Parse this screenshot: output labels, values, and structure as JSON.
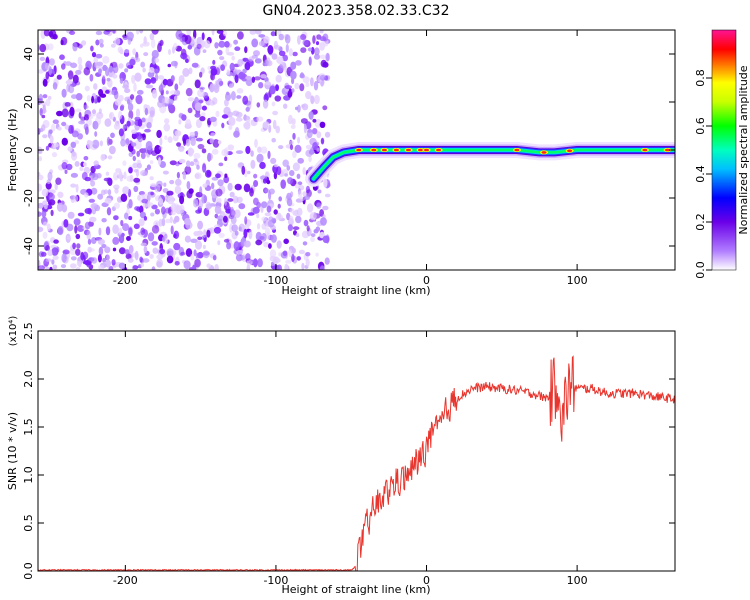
{
  "title": "GN04.2023.358.02.33.C32",
  "chart_data": [
    {
      "type": "heatmap",
      "xlabel": "Height of straight line (km)",
      "ylabel": "Frequency (Hz)",
      "xlim": [
        -258,
        165
      ],
      "ylim": [
        -50,
        50
      ],
      "xticks": [
        -200,
        -100,
        0,
        100
      ],
      "xtick_labels": [
        "-200",
        "-100",
        "0",
        "100"
      ],
      "yticks": [
        -40,
        -20,
        0,
        20,
        40
      ],
      "ytick_labels": [
        "-40",
        "-20",
        "0",
        "20",
        "40"
      ],
      "noise_region_x": [
        -258,
        -65
      ],
      "signal_ridge": {
        "x": [
          -75,
          -68,
          -62,
          -55,
          -45,
          -35,
          -25,
          -15,
          0,
          20,
          40,
          60,
          75,
          85,
          100,
          120,
          140,
          165
        ],
        "y": [
          -12,
          -7,
          -3,
          -1,
          0,
          0,
          0,
          0,
          0,
          0,
          0,
          0,
          -1,
          -1,
          0,
          0,
          0,
          0
        ]
      },
      "colorbar": {
        "label": "Normalized spectral amplitude",
        "range": [
          0,
          1
        ],
        "ticks": [
          0,
          0.2,
          0.4,
          0.6,
          0.8
        ],
        "tick_labels": [
          "0.0",
          "0.2",
          "0.4",
          "0.6",
          "0.8"
        ],
        "colormap": [
          "#ffffff",
          "#6a00e8",
          "#0000ff",
          "#00ffff",
          "#00ff00",
          "#ffff00",
          "#ff8000",
          "#ff0000",
          "#ff1493"
        ]
      },
      "grid": false
    },
    {
      "type": "line",
      "xlabel": "Height of straight line (km)",
      "ylabel": "SNR (10 * v/v)",
      "y_multiplier": "(x10⁴)",
      "xlim": [
        -258,
        165
      ],
      "ylim": [
        0,
        2.5
      ],
      "xticks": [
        -200,
        -100,
        0,
        100
      ],
      "xtick_labels": [
        "-200",
        "-100",
        "0",
        "100"
      ],
      "yticks": [
        0,
        0.5,
        1.0,
        1.5,
        2.0,
        2.5
      ],
      "ytick_labels": [
        "0.0",
        "0.5",
        "1.0",
        "1.5",
        "2.0",
        "2.5"
      ],
      "series": [
        {
          "color": "#e8362e",
          "x": [
            -258,
            -200,
            -100,
            -50,
            -47,
            -44,
            -40,
            -35,
            -30,
            -25,
            -20,
            -15,
            -10,
            -5,
            0,
            5,
            10,
            15,
            20,
            25,
            30,
            40,
            50,
            60,
            70,
            80,
            85,
            88,
            90,
            92,
            95,
            100,
            110,
            120,
            130,
            140,
            150,
            160,
            165
          ],
          "y": [
            0.01,
            0.01,
            0.01,
            0.01,
            0.05,
            0.25,
            0.45,
            0.65,
            0.75,
            0.85,
            0.95,
            0.95,
            1.05,
            1.15,
            1.3,
            1.45,
            1.55,
            1.7,
            1.8,
            1.85,
            1.9,
            1.92,
            1.9,
            1.88,
            1.85,
            1.8,
            1.9,
            2.0,
            1.5,
            1.75,
            1.95,
            1.9,
            1.9,
            1.85,
            1.85,
            1.85,
            1.82,
            1.8,
            1.78
          ]
        }
      ],
      "grid": false
    }
  ]
}
